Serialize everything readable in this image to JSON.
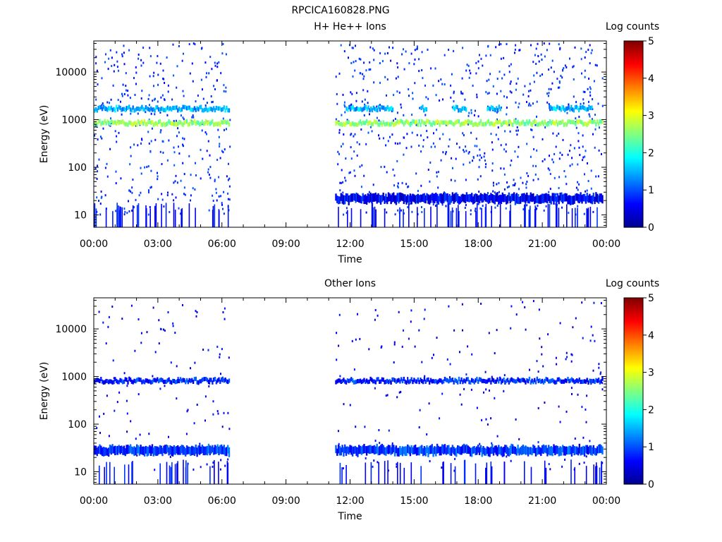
{
  "figure_title": "RPCICA160828.PNG",
  "colors": {
    "background": "#ffffff",
    "axes": "#000000",
    "colormap": [
      "#00008f",
      "#0000ff",
      "#0080ff",
      "#00ffff",
      "#80ff80",
      "#ffff00",
      "#ff8000",
      "#ff0000",
      "#800000"
    ]
  },
  "chart_data": [
    {
      "type": "heatmap",
      "title": "H+ He++ Ions",
      "xlabel": "Time",
      "ylabel": "Energy (eV)",
      "x_ticks": [
        "00:00",
        "03:00",
        "06:00",
        "09:00",
        "12:00",
        "15:00",
        "18:00",
        "21:00",
        "00:00"
      ],
      "x_range_hours": [
        0,
        24
      ],
      "y_scale": "log",
      "y_range": [
        5.5,
        45000
      ],
      "y_ticks": [
        {
          "value": 10,
          "label": "10"
        },
        {
          "value": 100,
          "label": "100"
        },
        {
          "value": 1000,
          "label": "1000"
        },
        {
          "value": 10000,
          "label": "10000"
        }
      ],
      "colorbar_label": "Log counts",
      "colorbar_range": [
        0,
        5
      ],
      "colorbar_ticks": [
        "0",
        "1",
        "2",
        "3",
        "4",
        "5"
      ],
      "data_intervals_hours": [
        [
          0.0,
          6.35
        ],
        [
          11.3,
          23.8
        ]
      ],
      "features": [
        {
          "name": "band_850eV",
          "energy_eV": 850,
          "level": 2.6,
          "intervals_hours": [
            [
              0.0,
              6.35
            ],
            [
              11.3,
              23.8
            ]
          ]
        },
        {
          "name": "band_1700eV",
          "energy_eV": 1700,
          "level": 1.5,
          "intervals_hours": [
            [
              0.0,
              6.35
            ],
            [
              11.8,
              14.0
            ],
            [
              15.3,
              15.6
            ],
            [
              16.8,
              17.4
            ],
            [
              18.4,
              19.0
            ],
            [
              21.3,
              23.3
            ]
          ]
        },
        {
          "name": "low_energy_band",
          "energy_eV": 22,
          "level": 0.6,
          "intervals_hours": [
            [
              11.3,
              23.8
            ]
          ]
        },
        {
          "name": "background_scatter",
          "energy_eV_range": [
            10,
            40000
          ],
          "level": 0.6
        }
      ]
    },
    {
      "type": "heatmap",
      "title": "Other Ions",
      "xlabel": "Time",
      "ylabel": "Energy (eV)",
      "x_ticks": [
        "00:00",
        "03:00",
        "06:00",
        "09:00",
        "12:00",
        "15:00",
        "18:00",
        "21:00",
        "00:00"
      ],
      "x_range_hours": [
        0,
        24
      ],
      "y_scale": "log",
      "y_range": [
        5.5,
        45000
      ],
      "y_ticks": [
        {
          "value": 10,
          "label": "10"
        },
        {
          "value": 100,
          "label": "100"
        },
        {
          "value": 1000,
          "label": "1000"
        },
        {
          "value": 10000,
          "label": "10000"
        }
      ],
      "colorbar_label": "Log counts",
      "colorbar_range": [
        0,
        5
      ],
      "colorbar_ticks": [
        "0",
        "1",
        "2",
        "3",
        "4",
        "5"
      ],
      "data_intervals_hours": [
        [
          0.0,
          6.35
        ],
        [
          11.3,
          23.8
        ]
      ],
      "features": [
        {
          "name": "band_850eV",
          "energy_eV": 820,
          "level": 0.8,
          "intervals_hours": [
            [
              0.0,
              6.35
            ],
            [
              11.3,
              23.8
            ]
          ]
        },
        {
          "name": "band_28eV",
          "energy_eV": 28,
          "level": 0.9,
          "intervals_hours": [
            [
              0.0,
              6.35
            ],
            [
              11.3,
              23.8
            ]
          ]
        },
        {
          "name": "background_scatter",
          "energy_eV_range": [
            10,
            40000
          ],
          "level": 0.3
        }
      ]
    }
  ]
}
